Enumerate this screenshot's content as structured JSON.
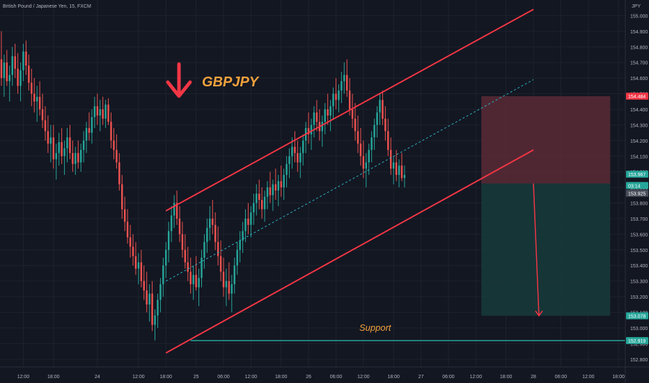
{
  "header": {
    "symbol_title": "British Pound / Japanese Yen, 15, FXCM",
    "currency_unit": "JPY"
  },
  "colors": {
    "background": "#131722",
    "grid": "#1e222d",
    "up_candle": "#26a69a",
    "down_candle": "#ef5350",
    "channel_line": "#f23645",
    "midline": "#2bb3c6",
    "annotation_text": "#f0a13c",
    "arrow": "#f23645",
    "support_line": "#26a69a",
    "stop_zone": "#5b2a36",
    "target_zone": "#17393a",
    "axis_text": "#b2b5be"
  },
  "annotations": {
    "ticker_label": "GBPJPY",
    "support_label": "Support",
    "down_arrow_icon": "arrow-down-icon"
  },
  "chart_data": {
    "type": "candlestick",
    "title": "British Pound / Japanese Yen, 15, FXCM",
    "xlabel": "",
    "ylabel": "JPY",
    "ylim": [
      152.75,
      155.1
    ],
    "y_ticks": [
      152.8,
      152.9,
      153.0,
      153.1,
      153.2,
      153.3,
      153.4,
      153.5,
      153.6,
      153.7,
      153.8,
      153.9,
      154.0,
      154.1,
      154.2,
      154.3,
      154.4,
      154.5,
      154.6,
      154.7,
      154.8,
      154.9,
      155.0
    ],
    "y_tick_labels": [
      "152.800",
      "152.900",
      "153.000",
      "153.100",
      "153.200",
      "153.300",
      "153.400",
      "153.500",
      "153.600",
      "153.700",
      "153.800",
      "153.900",
      "154.000",
      "154.100",
      "154.200",
      "154.300",
      "154.400",
      "154.500",
      "154.600",
      "154.700",
      "154.800",
      "154.900",
      "155.000"
    ],
    "x_tick_labels": [
      "12:00",
      "18:00",
      "24",
      "12:00",
      "18:00",
      "25",
      "06:00",
      "12:00",
      "18:00",
      "26",
      "06:00",
      "12:00",
      "18:00",
      "27",
      "06:00",
      "12:00",
      "18:00",
      "28",
      "06:00",
      "12:00",
      "18:00"
    ],
    "x_tick_index": [
      8,
      19,
      35,
      50,
      60,
      71,
      81,
      91,
      102,
      112,
      122,
      132,
      143,
      153,
      163,
      173,
      184,
      194,
      204,
      214,
      225
    ],
    "price_labels": [
      {
        "label": "154.484",
        "value": 154.484,
        "kind": "stop"
      },
      {
        "label": "153.967",
        "value": 153.967,
        "kind": "current"
      },
      {
        "label": "03:14",
        "value": 153.93,
        "kind": "timer"
      },
      {
        "label": "153.925",
        "value": 153.925,
        "kind": "entry"
      },
      {
        "label": "153.078",
        "value": 153.078,
        "kind": "target"
      },
      {
        "label": "152.919",
        "value": 152.919,
        "kind": "support"
      }
    ],
    "channel": {
      "upper": [
        {
          "i": 60,
          "y": 153.75
        },
        {
          "i": 194,
          "y": 155.04
        }
      ],
      "lower": [
        {
          "i": 60,
          "y": 152.84
        },
        {
          "i": 194,
          "y": 154.14
        }
      ],
      "mid": [
        {
          "i": 60,
          "y": 153.3
        },
        {
          "i": 194,
          "y": 154.59
        }
      ]
    },
    "support_level": 152.919,
    "support_start_index": 69,
    "position": {
      "direction": "short",
      "entry": 153.925,
      "stop": 154.484,
      "target": 153.078,
      "start_index": 175,
      "end_index": 222
    },
    "projection_arrow": {
      "from_i": 194,
      "from_y": 153.925,
      "to_i": 196,
      "to_y": 153.078
    },
    "ohlc": [
      [
        154.72,
        154.9,
        154.55,
        154.6
      ],
      [
        154.6,
        154.75,
        154.48,
        154.7
      ],
      [
        154.7,
        154.78,
        154.55,
        154.58
      ],
      [
        154.58,
        154.68,
        154.45,
        154.62
      ],
      [
        154.62,
        154.8,
        154.55,
        154.74
      ],
      [
        154.74,
        154.82,
        154.6,
        154.66
      ],
      [
        154.66,
        154.76,
        154.5,
        154.55
      ],
      [
        154.55,
        154.7,
        154.45,
        154.65
      ],
      [
        154.65,
        154.82,
        154.58,
        154.77
      ],
      [
        154.77,
        154.84,
        154.62,
        154.68
      ],
      [
        154.68,
        154.75,
        154.52,
        154.57
      ],
      [
        154.57,
        154.66,
        154.42,
        154.5
      ],
      [
        154.5,
        154.6,
        154.38,
        154.45
      ],
      [
        154.45,
        154.55,
        154.32,
        154.48
      ],
      [
        154.48,
        154.58,
        154.36,
        154.4
      ],
      [
        154.4,
        154.5,
        154.28,
        154.33
      ],
      [
        154.33,
        154.42,
        154.2,
        154.26
      ],
      [
        154.26,
        154.36,
        154.12,
        154.18
      ],
      [
        154.18,
        154.3,
        154.06,
        154.22
      ],
      [
        154.22,
        154.3,
        154.02,
        154.08
      ],
      [
        154.08,
        154.18,
        153.95,
        154.12
      ],
      [
        154.12,
        154.25,
        154.04,
        154.19
      ],
      [
        154.19,
        154.28,
        154.05,
        154.1
      ],
      [
        154.1,
        154.2,
        153.98,
        154.15
      ],
      [
        154.15,
        154.28,
        154.06,
        154.22
      ],
      [
        154.22,
        154.3,
        154.08,
        154.12
      ],
      [
        154.12,
        154.2,
        154.0,
        154.05
      ],
      [
        154.05,
        154.16,
        153.98,
        154.12
      ],
      [
        154.12,
        154.2,
        154.02,
        154.06
      ],
      [
        154.06,
        154.18,
        154.0,
        154.14
      ],
      [
        154.14,
        154.26,
        154.06,
        154.2
      ],
      [
        154.2,
        154.32,
        154.12,
        154.28
      ],
      [
        154.28,
        154.38,
        154.2,
        154.25
      ],
      [
        154.25,
        154.4,
        154.18,
        154.35
      ],
      [
        154.35,
        154.48,
        154.28,
        154.42
      ],
      [
        154.42,
        154.5,
        154.3,
        154.36
      ],
      [
        154.36,
        154.46,
        154.26,
        154.4
      ],
      [
        154.4,
        154.48,
        154.3,
        154.34
      ],
      [
        154.34,
        154.46,
        154.28,
        154.43
      ],
      [
        154.43,
        154.47,
        154.3,
        154.32
      ],
      [
        154.32,
        154.38,
        154.15,
        154.2
      ],
      [
        154.2,
        154.28,
        154.08,
        154.14
      ],
      [
        154.14,
        154.24,
        154.02,
        154.06
      ],
      [
        154.06,
        154.12,
        153.88,
        153.92
      ],
      [
        153.92,
        153.98,
        153.7,
        153.76
      ],
      [
        153.76,
        153.84,
        153.62,
        153.68
      ],
      [
        153.68,
        153.76,
        153.54,
        153.58
      ],
      [
        153.58,
        153.66,
        153.45,
        153.52
      ],
      [
        153.52,
        153.6,
        153.4,
        153.46
      ],
      [
        153.46,
        153.55,
        153.34,
        153.38
      ],
      [
        153.38,
        153.48,
        153.28,
        153.42
      ],
      [
        153.42,
        153.5,
        153.26,
        153.3
      ],
      [
        153.3,
        153.4,
        153.18,
        153.24
      ],
      [
        153.24,
        153.36,
        153.1,
        153.15
      ],
      [
        153.15,
        153.28,
        153.04,
        153.22
      ],
      [
        153.22,
        153.3,
        152.98,
        153.02
      ],
      [
        153.02,
        153.12,
        152.92,
        153.08
      ],
      [
        153.08,
        153.22,
        153.0,
        153.18
      ],
      [
        153.18,
        153.32,
        153.1,
        153.28
      ],
      [
        153.28,
        153.45,
        153.2,
        153.4
      ],
      [
        153.4,
        153.55,
        153.32,
        153.5
      ],
      [
        153.5,
        153.68,
        153.42,
        153.62
      ],
      [
        153.62,
        153.78,
        153.55,
        153.72
      ],
      [
        153.72,
        153.85,
        153.64,
        153.8
      ],
      [
        153.8,
        153.88,
        153.66,
        153.7
      ],
      [
        153.7,
        153.78,
        153.55,
        153.6
      ],
      [
        153.6,
        153.68,
        153.45,
        153.5
      ],
      [
        153.5,
        153.6,
        153.38,
        153.42
      ],
      [
        153.42,
        153.52,
        153.3,
        153.36
      ],
      [
        153.36,
        153.45,
        153.22,
        153.28
      ],
      [
        153.28,
        153.4,
        153.18,
        153.34
      ],
      [
        153.34,
        153.46,
        153.24,
        153.26
      ],
      [
        153.26,
        153.38,
        153.14,
        153.32
      ],
      [
        153.32,
        153.5,
        153.26,
        153.45
      ],
      [
        153.45,
        153.6,
        153.38,
        153.55
      ],
      [
        153.55,
        153.7,
        153.48,
        153.64
      ],
      [
        153.64,
        153.78,
        153.56,
        153.7
      ],
      [
        153.7,
        153.82,
        153.6,
        153.66
      ],
      [
        153.66,
        153.74,
        153.5,
        153.55
      ],
      [
        153.55,
        153.65,
        153.4,
        153.46
      ],
      [
        153.46,
        153.56,
        153.3,
        153.36
      ],
      [
        153.36,
        153.45,
        153.2,
        153.26
      ],
      [
        153.26,
        153.38,
        153.14,
        153.3
      ],
      [
        153.3,
        153.42,
        153.18,
        153.22
      ],
      [
        153.22,
        153.34,
        153.1,
        153.28
      ],
      [
        153.28,
        153.45,
        153.22,
        153.4
      ],
      [
        153.4,
        153.55,
        153.34,
        153.5
      ],
      [
        153.5,
        153.62,
        153.42,
        153.56
      ],
      [
        153.56,
        153.68,
        153.48,
        153.62
      ],
      [
        153.62,
        153.76,
        153.55,
        153.7
      ],
      [
        153.7,
        153.8,
        153.6,
        153.66
      ],
      [
        153.66,
        153.78,
        153.58,
        153.74
      ],
      [
        153.74,
        153.86,
        153.66,
        153.8
      ],
      [
        153.8,
        153.92,
        153.72,
        153.86
      ],
      [
        153.86,
        153.95,
        153.76,
        153.82
      ],
      [
        153.82,
        153.9,
        153.7,
        153.76
      ],
      [
        153.76,
        153.88,
        153.68,
        153.84
      ],
      [
        153.84,
        153.94,
        153.76,
        153.9
      ],
      [
        153.9,
        154.0,
        153.8,
        153.85
      ],
      [
        153.85,
        153.95,
        153.75,
        153.92
      ],
      [
        153.92,
        154.02,
        153.82,
        153.88
      ],
      [
        153.88,
        153.98,
        153.78,
        153.94
      ],
      [
        153.94,
        154.04,
        153.84,
        153.9
      ],
      [
        153.9,
        154.02,
        153.82,
        153.98
      ],
      [
        153.98,
        154.1,
        153.9,
        154.05
      ],
      [
        154.05,
        154.15,
        153.96,
        154.1
      ],
      [
        154.1,
        154.22,
        154.02,
        154.16
      ],
      [
        154.16,
        154.26,
        154.06,
        154.12
      ],
      [
        154.12,
        154.2,
        154.0,
        154.06
      ],
      [
        154.06,
        154.16,
        153.96,
        154.12
      ],
      [
        154.12,
        154.24,
        154.04,
        154.2
      ],
      [
        154.2,
        154.32,
        154.12,
        154.28
      ],
      [
        154.28,
        154.38,
        154.18,
        154.24
      ],
      [
        154.24,
        154.34,
        154.14,
        154.3
      ],
      [
        154.3,
        154.42,
        154.22,
        154.38
      ],
      [
        154.38,
        154.46,
        154.26,
        154.32
      ],
      [
        154.32,
        154.4,
        154.2,
        154.26
      ],
      [
        154.26,
        154.36,
        154.16,
        154.32
      ],
      [
        154.32,
        154.44,
        154.24,
        154.4
      ],
      [
        154.4,
        154.5,
        154.3,
        154.36
      ],
      [
        154.36,
        154.46,
        154.26,
        154.42
      ],
      [
        154.42,
        154.54,
        154.34,
        154.5
      ],
      [
        154.5,
        154.6,
        154.4,
        154.46
      ],
      [
        154.46,
        154.56,
        154.38,
        154.52
      ],
      [
        154.52,
        154.64,
        154.44,
        154.58
      ],
      [
        154.58,
        154.7,
        154.5,
        154.62
      ],
      [
        154.62,
        154.72,
        154.48,
        154.52
      ],
      [
        154.52,
        154.6,
        154.36,
        154.4
      ],
      [
        154.4,
        154.5,
        154.28,
        154.34
      ],
      [
        154.34,
        154.44,
        154.2,
        154.26
      ],
      [
        154.26,
        154.36,
        154.12,
        154.18
      ],
      [
        154.18,
        154.28,
        154.04,
        154.1
      ],
      [
        154.1,
        154.2,
        153.96,
        154.02
      ],
      [
        154.02,
        154.12,
        153.9,
        154.06
      ],
      [
        154.06,
        154.18,
        153.98,
        154.14
      ],
      [
        154.14,
        154.26,
        154.06,
        154.22
      ],
      [
        154.22,
        154.34,
        154.14,
        154.3
      ],
      [
        154.3,
        154.42,
        154.22,
        154.38
      ],
      [
        154.38,
        154.5,
        154.3,
        154.46
      ],
      [
        154.46,
        154.52,
        154.3,
        154.34
      ],
      [
        154.34,
        154.42,
        154.2,
        154.26
      ],
      [
        154.26,
        154.34,
        154.1,
        154.14
      ],
      [
        154.14,
        154.22,
        153.98,
        154.02
      ],
      [
        154.02,
        154.1,
        153.92,
        154.06
      ],
      [
        154.06,
        154.14,
        153.94,
        153.98
      ],
      [
        153.98,
        154.08,
        153.9,
        154.04
      ],
      [
        154.04,
        154.12,
        153.94,
        153.96
      ],
      [
        153.96,
        154.04,
        153.9,
        153.98
      ]
    ]
  }
}
